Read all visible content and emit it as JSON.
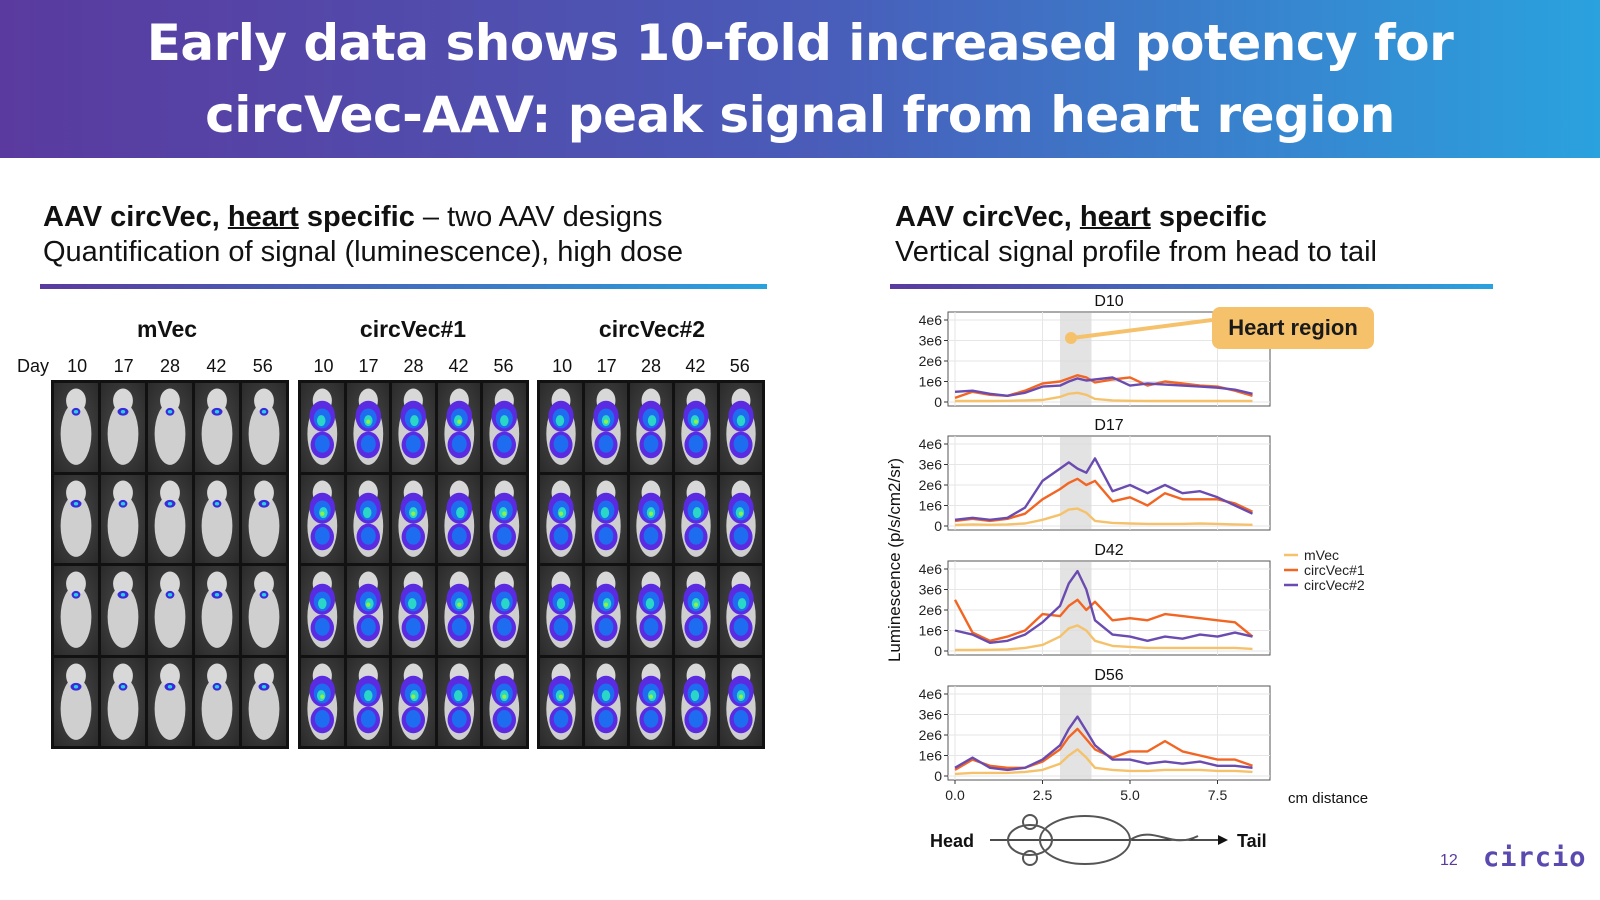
{
  "slide": {
    "title": "Early data shows 10-fold increased potency for\ncircVec-AAV: peak signal from heart region",
    "page_number": "12",
    "logo_text": "circio"
  },
  "left": {
    "heading_bold_pre": "AAV circVec, ",
    "heading_underlined": "heart",
    "heading_bold_post": " specific",
    "heading_rest": " – two AAV designs",
    "subheading": "Quantification of signal (luminescence), high dose",
    "day_prefix": "Day",
    "groups": [
      {
        "name": "mVec",
        "days": [
          "10",
          "17",
          "28",
          "42",
          "56"
        ]
      },
      {
        "name": "circVec#1",
        "days": [
          "10",
          "17",
          "28",
          "42",
          "56"
        ]
      },
      {
        "name": "circVec#2",
        "days": [
          "10",
          "17",
          "28",
          "42",
          "56"
        ]
      }
    ]
  },
  "right": {
    "heading_bold_pre": "AAV circVec, ",
    "heading_underlined": "heart",
    "heading_bold_post": " specific",
    "subheading": "Vertical signal profile from head to tail",
    "callout": "Heart region",
    "head_label": "Head",
    "tail_label": "Tail"
  },
  "chart_data": {
    "type": "line",
    "ylabel": "Luminescence (p/s/cm2/sr)",
    "xlabel": "cm distance",
    "xlim": [
      -0.2,
      9.0
    ],
    "ylim": [
      0,
      4000000
    ],
    "xticks": [
      0.0,
      2.5,
      5.0,
      7.5
    ],
    "xtick_labels": [
      "0.0",
      "2.5",
      "5.0",
      "7.5"
    ],
    "yticks": [
      0,
      1000000,
      2000000,
      3000000,
      4000000
    ],
    "ytick_labels": [
      "0",
      "1e6",
      "2e6",
      "3e6",
      "4e6"
    ],
    "highlight_band": [
      3.0,
      3.9
    ],
    "legend": [
      {
        "name": "mVec",
        "color": "#f5c26b"
      },
      {
        "name": "circVec#1",
        "color": "#f26522"
      },
      {
        "name": "circVec#2",
        "color": "#6a4bb0"
      }
    ],
    "x": [
      0,
      0.5,
      1,
      1.5,
      2,
      2.5,
      3,
      3.25,
      3.5,
      3.75,
      4,
      4.5,
      5,
      5.5,
      6,
      6.5,
      7,
      7.5,
      8,
      8.5
    ],
    "panels": [
      {
        "title": "D10",
        "series": [
          {
            "name": "mVec",
            "values": [
              50000,
              50000,
              50000,
              60000,
              80000,
              100000,
              250000,
              400000,
              450000,
              350000,
              150000,
              80000,
              60000,
              50000,
              50000,
              50000,
              50000,
              50000,
              50000,
              50000
            ]
          },
          {
            "name": "circVec#1",
            "values": [
              200000,
              500000,
              350000,
              300000,
              550000,
              900000,
              1000000,
              1150000,
              1300000,
              1200000,
              950000,
              1100000,
              1200000,
              800000,
              1000000,
              900000,
              800000,
              750000,
              550000,
              300000
            ]
          },
          {
            "name": "circVec#2",
            "values": [
              500000,
              550000,
              400000,
              300000,
              450000,
              750000,
              800000,
              1000000,
              1150000,
              1050000,
              1100000,
              1200000,
              800000,
              900000,
              850000,
              800000,
              750000,
              700000,
              600000,
              400000
            ]
          }
        ]
      },
      {
        "title": "D17",
        "series": [
          {
            "name": "mVec",
            "values": [
              50000,
              80000,
              60000,
              80000,
              120000,
              300000,
              550000,
              800000,
              850000,
              650000,
              250000,
              150000,
              120000,
              100000,
              100000,
              100000,
              120000,
              100000,
              80000,
              60000
            ]
          },
          {
            "name": "circVec#1",
            "values": [
              250000,
              350000,
              250000,
              350000,
              600000,
              1300000,
              1800000,
              2100000,
              2300000,
              2000000,
              2200000,
              1200000,
              1400000,
              1000000,
              1600000,
              1300000,
              1300000,
              1300000,
              1100000,
              700000
            ]
          },
          {
            "name": "circVec#2",
            "values": [
              300000,
              400000,
              300000,
              400000,
              900000,
              2200000,
              2800000,
              3100000,
              2800000,
              2600000,
              3300000,
              1700000,
              2000000,
              1600000,
              2000000,
              1600000,
              1700000,
              1400000,
              1000000,
              600000
            ]
          }
        ]
      },
      {
        "title": "D42",
        "series": [
          {
            "name": "mVec",
            "values": [
              50000,
              50000,
              60000,
              80000,
              150000,
              300000,
              700000,
              1100000,
              1250000,
              1000000,
              500000,
              250000,
              200000,
              150000,
              150000,
              150000,
              150000,
              150000,
              150000,
              100000
            ]
          },
          {
            "name": "circVec#1",
            "values": [
              2500000,
              900000,
              500000,
              700000,
              1000000,
              1800000,
              1700000,
              2200000,
              2500000,
              2000000,
              2400000,
              1500000,
              1600000,
              1500000,
              1800000,
              1700000,
              1600000,
              1500000,
              1400000,
              700000
            ]
          },
          {
            "name": "circVec#2",
            "values": [
              1000000,
              800000,
              400000,
              500000,
              800000,
              1400000,
              2200000,
              3300000,
              3900000,
              3000000,
              1500000,
              800000,
              700000,
              500000,
              700000,
              600000,
              800000,
              700000,
              900000,
              700000
            ]
          }
        ]
      },
      {
        "title": "D56",
        "series": [
          {
            "name": "mVec",
            "values": [
              100000,
              150000,
              150000,
              150000,
              200000,
              300000,
              600000,
              1000000,
              1300000,
              900000,
              400000,
              300000,
              250000,
              250000,
              300000,
              300000,
              300000,
              250000,
              250000,
              200000
            ]
          },
          {
            "name": "circVec#1",
            "values": [
              300000,
              800000,
              500000,
              400000,
              400000,
              700000,
              1300000,
              1900000,
              2300000,
              1800000,
              1300000,
              900000,
              1200000,
              1200000,
              1700000,
              1200000,
              1000000,
              800000,
              800000,
              500000
            ]
          },
          {
            "name": "circVec#2",
            "values": [
              400000,
              900000,
              400000,
              300000,
              400000,
              800000,
              1500000,
              2300000,
              2900000,
              2200000,
              1500000,
              800000,
              800000,
              600000,
              700000,
              600000,
              700000,
              500000,
              500000,
              400000
            ]
          }
        ]
      }
    ]
  }
}
